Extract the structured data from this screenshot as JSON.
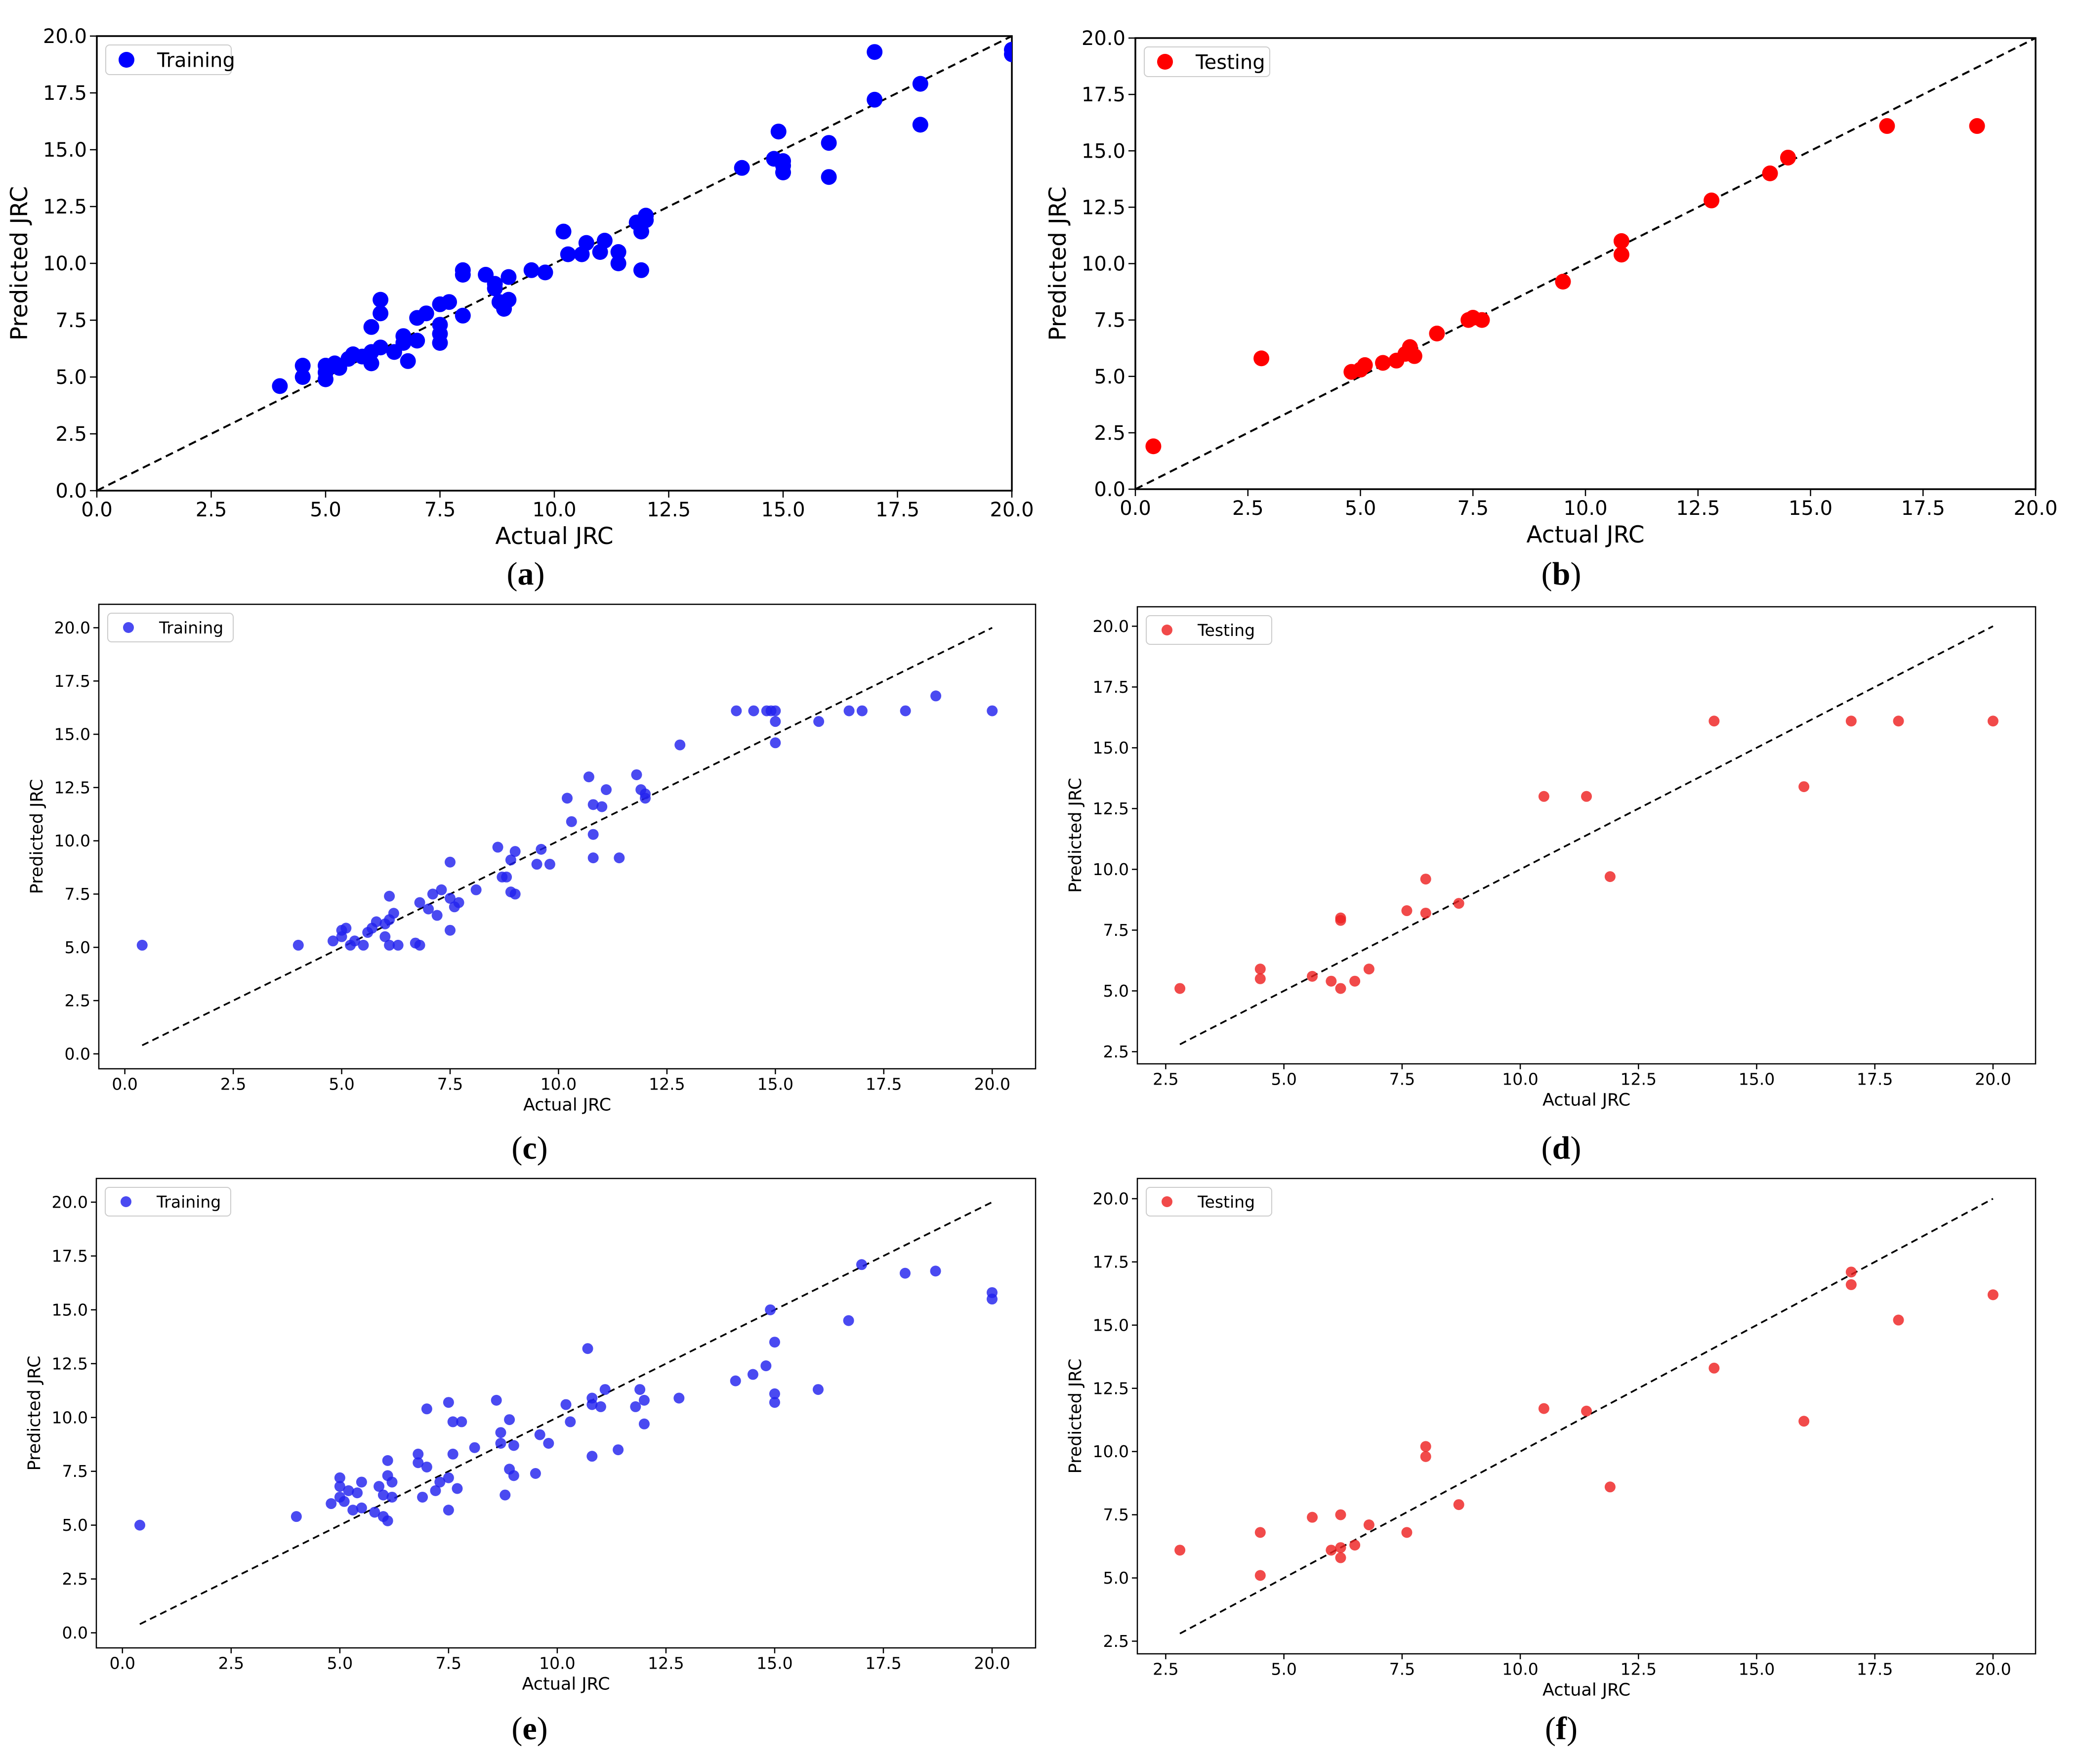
{
  "chart_data": [
    {
      "panel": "a",
      "caption_letter": "a",
      "type": "scatter",
      "xlabel": "Actual JRC",
      "ylabel": "Predicted JRC",
      "xlim": [
        0,
        20
      ],
      "ylim": [
        0,
        20
      ],
      "xticks": [
        "0.0",
        "2.5",
        "5.0",
        "7.5",
        "10.0",
        "12.5",
        "15.0",
        "17.5",
        "20.0"
      ],
      "yticks": [
        "0.0",
        "2.5",
        "5.0",
        "7.5",
        "10.0",
        "12.5",
        "15.0",
        "17.5",
        "20.0"
      ],
      "identity_line": [
        [
          0,
          0
        ],
        [
          20,
          20
        ]
      ],
      "legend": "Training",
      "color": "#0000ff",
      "points": [
        [
          4.0,
          4.6
        ],
        [
          4.5,
          5.5
        ],
        [
          4.5,
          5.0
        ],
        [
          5.0,
          5.5
        ],
        [
          5.0,
          5.2
        ],
        [
          5.0,
          4.9
        ],
        [
          5.2,
          5.6
        ],
        [
          5.3,
          5.4
        ],
        [
          5.5,
          5.8
        ],
        [
          5.6,
          6.0
        ],
        [
          5.8,
          5.9
        ],
        [
          6.0,
          6.1
        ],
        [
          6.0,
          5.6
        ],
        [
          6.0,
          7.2
        ],
        [
          6.2,
          8.4
        ],
        [
          6.2,
          7.8
        ],
        [
          6.2,
          6.3
        ],
        [
          6.5,
          6.1
        ],
        [
          6.7,
          6.5
        ],
        [
          6.7,
          6.8
        ],
        [
          6.8,
          5.7
        ],
        [
          7.0,
          6.6
        ],
        [
          7.0,
          7.6
        ],
        [
          7.2,
          7.8
        ],
        [
          7.5,
          7.3
        ],
        [
          7.5,
          6.9
        ],
        [
          7.5,
          6.5
        ],
        [
          7.5,
          8.2
        ],
        [
          7.7,
          8.3
        ],
        [
          8.0,
          7.7
        ],
        [
          8.0,
          9.5
        ],
        [
          8.0,
          9.7
        ],
        [
          8.5,
          9.5
        ],
        [
          8.7,
          9.1
        ],
        [
          8.7,
          8.9
        ],
        [
          8.8,
          8.3
        ],
        [
          8.9,
          8.0
        ],
        [
          9.0,
          9.4
        ],
        [
          9.0,
          8.4
        ],
        [
          9.5,
          9.7
        ],
        [
          9.8,
          9.6
        ],
        [
          10.2,
          11.4
        ],
        [
          10.3,
          10.4
        ],
        [
          10.6,
          10.4
        ],
        [
          10.7,
          10.9
        ],
        [
          11.0,
          10.5
        ],
        [
          11.1,
          11.0
        ],
        [
          11.4,
          10.5
        ],
        [
          11.4,
          10.0
        ],
        [
          11.8,
          11.8
        ],
        [
          11.9,
          11.4
        ],
        [
          12.0,
          12.1
        ],
        [
          12.0,
          11.9
        ],
        [
          11.9,
          9.7
        ],
        [
          14.1,
          14.2
        ],
        [
          14.8,
          14.6
        ],
        [
          14.9,
          15.8
        ],
        [
          15.0,
          14.5
        ],
        [
          15.0,
          14.0
        ],
        [
          15.0,
          14.3
        ],
        [
          16.0,
          15.3
        ],
        [
          16.0,
          13.8
        ],
        [
          17.0,
          19.3
        ],
        [
          17.0,
          17.2
        ],
        [
          18.0,
          17.9
        ],
        [
          18.0,
          16.1
        ],
        [
          20.0,
          19.4
        ],
        [
          20.0,
          19.2
        ]
      ]
    },
    {
      "panel": "b",
      "caption_letter": "b",
      "type": "scatter",
      "xlabel": "Actual JRC",
      "ylabel": "Predicted JRC",
      "xlim": [
        0,
        20
      ],
      "ylim": [
        0,
        20
      ],
      "xticks": [
        "0.0",
        "2.5",
        "5.0",
        "7.5",
        "10.0",
        "12.5",
        "15.0",
        "17.5",
        "20.0"
      ],
      "yticks": [
        "0.0",
        "2.5",
        "5.0",
        "7.5",
        "10.0",
        "12.5",
        "15.0",
        "17.5",
        "20.0"
      ],
      "identity_line": [
        [
          0,
          0
        ],
        [
          20,
          20
        ]
      ],
      "legend": "Testing",
      "color": "#ff0000",
      "points": [
        [
          0.4,
          1.9
        ],
        [
          2.8,
          5.8
        ],
        [
          4.8,
          5.2
        ],
        [
          5.0,
          5.3
        ],
        [
          5.1,
          5.5
        ],
        [
          5.5,
          5.6
        ],
        [
          5.8,
          5.7
        ],
        [
          6.0,
          6.0
        ],
        [
          6.1,
          6.3
        ],
        [
          6.2,
          5.9
        ],
        [
          6.7,
          6.9
        ],
        [
          7.4,
          7.5
        ],
        [
          7.5,
          7.6
        ],
        [
          7.7,
          7.5
        ],
        [
          9.5,
          9.2
        ],
        [
          10.8,
          11.0
        ],
        [
          10.8,
          10.4
        ],
        [
          12.8,
          12.8
        ],
        [
          14.1,
          14.0
        ],
        [
          14.5,
          14.7
        ],
        [
          16.7,
          16.1
        ],
        [
          18.7,
          16.1
        ]
      ]
    },
    {
      "panel": "c",
      "caption_letter": "c",
      "type": "scatter",
      "xlabel": "Actual JRC",
      "ylabel": "Predicted JRC",
      "xlim": [
        -0.6,
        21.0
      ],
      "ylim": [
        -0.7,
        21.1
      ],
      "xticks": [
        "0.0",
        "2.5",
        "5.0",
        "7.5",
        "10.0",
        "12.5",
        "15.0",
        "17.5",
        "20.0"
      ],
      "yticks": [
        "0.0",
        "2.5",
        "5.0",
        "7.5",
        "10.0",
        "12.5",
        "15.0",
        "17.5",
        "20.0"
      ],
      "identity_line": [
        [
          0.4,
          0.4
        ],
        [
          20,
          20
        ]
      ],
      "legend": "Training",
      "color": "#2222ee",
      "points": [
        [
          0.4,
          5.1
        ],
        [
          4.0,
          5.1
        ],
        [
          4.8,
          5.3
        ],
        [
          5.0,
          5.8
        ],
        [
          5.0,
          5.5
        ],
        [
          5.1,
          5.9
        ],
        [
          5.2,
          5.1
        ],
        [
          5.3,
          5.3
        ],
        [
          5.5,
          5.1
        ],
        [
          5.6,
          5.7
        ],
        [
          5.7,
          5.9
        ],
        [
          5.8,
          6.2
        ],
        [
          6.0,
          5.5
        ],
        [
          6.0,
          6.1
        ],
        [
          6.1,
          5.1
        ],
        [
          6.1,
          6.3
        ],
        [
          6.1,
          7.4
        ],
        [
          6.2,
          6.6
        ],
        [
          6.3,
          5.1
        ],
        [
          6.7,
          5.2
        ],
        [
          6.8,
          7.1
        ],
        [
          6.8,
          5.1
        ],
        [
          7.0,
          6.8
        ],
        [
          7.1,
          7.5
        ],
        [
          7.2,
          6.5
        ],
        [
          7.3,
          7.7
        ],
        [
          7.5,
          7.3
        ],
        [
          7.5,
          5.8
        ],
        [
          7.5,
          9.0
        ],
        [
          7.6,
          6.9
        ],
        [
          7.7,
          7.1
        ],
        [
          8.1,
          7.7
        ],
        [
          8.6,
          9.7
        ],
        [
          8.7,
          8.3
        ],
        [
          8.8,
          8.3
        ],
        [
          8.9,
          9.1
        ],
        [
          8.9,
          7.6
        ],
        [
          9.0,
          7.5
        ],
        [
          9.0,
          9.5
        ],
        [
          9.5,
          8.9
        ],
        [
          9.6,
          9.6
        ],
        [
          9.8,
          8.9
        ],
        [
          10.2,
          12.0
        ],
        [
          10.3,
          10.9
        ],
        [
          10.7,
          13.0
        ],
        [
          10.8,
          11.7
        ],
        [
          10.8,
          10.3
        ],
        [
          10.8,
          9.2
        ],
        [
          11.1,
          12.4
        ],
        [
          11.0,
          11.6
        ],
        [
          11.4,
          9.2
        ],
        [
          11.8,
          13.1
        ],
        [
          11.9,
          12.4
        ],
        [
          12.0,
          12.0
        ],
        [
          12.0,
          12.2
        ],
        [
          12.8,
          14.5
        ],
        [
          14.1,
          16.1
        ],
        [
          14.5,
          16.1
        ],
        [
          14.8,
          16.1
        ],
        [
          14.9,
          16.1
        ],
        [
          15.0,
          16.1
        ],
        [
          15.0,
          15.6
        ],
        [
          15.0,
          14.6
        ],
        [
          16.0,
          15.6
        ],
        [
          16.7,
          16.1
        ],
        [
          17.0,
          16.1
        ],
        [
          18.0,
          16.1
        ],
        [
          18.7,
          16.8
        ],
        [
          20.0,
          16.1
        ]
      ]
    },
    {
      "panel": "d",
      "caption_letter": "d",
      "type": "scatter",
      "xlabel": "Actual JRC",
      "ylabel": "Predicted JRC",
      "xlim": [
        1.9,
        20.9
      ],
      "ylim": [
        2.0,
        20.8
      ],
      "xticks": [
        "2.5",
        "5.0",
        "7.5",
        "10.0",
        "12.5",
        "15.0",
        "17.5",
        "20.0"
      ],
      "yticks": [
        "2.5",
        "5.0",
        "7.5",
        "10.0",
        "12.5",
        "15.0",
        "17.5",
        "20.0"
      ],
      "identity_line": [
        [
          2.8,
          2.8
        ],
        [
          20,
          20
        ]
      ],
      "legend": "Testing",
      "color": "#ee2222",
      "points": [
        [
          2.8,
          5.1
        ],
        [
          4.5,
          5.9
        ],
        [
          4.5,
          5.5
        ],
        [
          5.6,
          5.6
        ],
        [
          6.0,
          5.4
        ],
        [
          6.2,
          8.0
        ],
        [
          6.2,
          7.9
        ],
        [
          6.2,
          5.1
        ],
        [
          6.5,
          5.4
        ],
        [
          6.8,
          5.9
        ],
        [
          7.6,
          8.3
        ],
        [
          8.0,
          9.6
        ],
        [
          8.0,
          8.2
        ],
        [
          8.7,
          8.6
        ],
        [
          10.5,
          13.0
        ],
        [
          11.4,
          13.0
        ],
        [
          11.9,
          9.7
        ],
        [
          14.1,
          16.1
        ],
        [
          16.0,
          13.4
        ],
        [
          17.0,
          16.1
        ],
        [
          18.0,
          16.1
        ],
        [
          20.0,
          16.1
        ]
      ]
    },
    {
      "panel": "e",
      "caption_letter": "e",
      "type": "scatter",
      "xlabel": "Actual JRC",
      "ylabel": "Predicted JRC",
      "xlim": [
        -0.6,
        21.0
      ],
      "ylim": [
        -0.7,
        21.1
      ],
      "xticks": [
        "0.0",
        "2.5",
        "5.0",
        "7.5",
        "10.0",
        "12.5",
        "15.0",
        "17.5",
        "20.0"
      ],
      "yticks": [
        "0.0",
        "2.5",
        "5.0",
        "7.5",
        "10.0",
        "12.5",
        "15.0",
        "17.5",
        "20.0"
      ],
      "identity_line": [
        [
          0.4,
          0.4
        ],
        [
          20,
          20
        ]
      ],
      "legend": "Training",
      "color": "#2222ee",
      "points": [
        [
          0.4,
          5.0
        ],
        [
          4.0,
          5.4
        ],
        [
          4.8,
          6.0
        ],
        [
          5.0,
          7.2
        ],
        [
          5.0,
          6.8
        ],
        [
          5.0,
          6.3
        ],
        [
          5.1,
          6.1
        ],
        [
          5.2,
          6.6
        ],
        [
          5.3,
          5.7
        ],
        [
          5.4,
          6.5
        ],
        [
          5.5,
          5.8
        ],
        [
          5.5,
          7.0
        ],
        [
          5.8,
          5.6
        ],
        [
          5.9,
          6.8
        ],
        [
          6.0,
          5.4
        ],
        [
          6.0,
          6.4
        ],
        [
          6.1,
          7.3
        ],
        [
          6.1,
          5.2
        ],
        [
          6.2,
          6.3
        ],
        [
          6.1,
          8.0
        ],
        [
          6.2,
          7.0
        ],
        [
          6.8,
          8.3
        ],
        [
          6.8,
          7.9
        ],
        [
          6.9,
          6.3
        ],
        [
          7.0,
          7.7
        ],
        [
          7.0,
          10.4
        ],
        [
          7.2,
          6.6
        ],
        [
          7.3,
          7.0
        ],
        [
          7.5,
          10.7
        ],
        [
          7.5,
          7.2
        ],
        [
          7.5,
          5.7
        ],
        [
          7.6,
          9.8
        ],
        [
          7.6,
          8.3
        ],
        [
          7.7,
          6.7
        ],
        [
          7.8,
          9.8
        ],
        [
          8.1,
          8.6
        ],
        [
          8.6,
          10.8
        ],
        [
          8.7,
          8.8
        ],
        [
          8.7,
          9.3
        ],
        [
          8.8,
          6.4
        ],
        [
          8.9,
          9.9
        ],
        [
          8.9,
          7.6
        ],
        [
          9.0,
          7.3
        ],
        [
          9.0,
          8.7
        ],
        [
          9.5,
          7.4
        ],
        [
          9.6,
          9.2
        ],
        [
          9.8,
          8.8
        ],
        [
          10.2,
          10.6
        ],
        [
          10.3,
          9.8
        ],
        [
          10.7,
          13.2
        ],
        [
          10.8,
          10.9
        ],
        [
          10.8,
          8.2
        ],
        [
          10.8,
          10.6
        ],
        [
          11.0,
          10.5
        ],
        [
          11.1,
          11.3
        ],
        [
          11.4,
          8.5
        ],
        [
          11.8,
          10.5
        ],
        [
          11.9,
          11.3
        ],
        [
          12.0,
          10.8
        ],
        [
          12.0,
          9.7
        ],
        [
          12.8,
          10.9
        ],
        [
          14.1,
          11.7
        ],
        [
          14.5,
          12.0
        ],
        [
          14.8,
          12.4
        ],
        [
          14.9,
          15.0
        ],
        [
          15.0,
          13.5
        ],
        [
          15.0,
          11.1
        ],
        [
          15.0,
          10.7
        ],
        [
          16.0,
          11.3
        ],
        [
          16.7,
          14.5
        ],
        [
          17.0,
          17.1
        ],
        [
          18.0,
          16.7
        ],
        [
          18.7,
          16.8
        ],
        [
          20.0,
          15.8
        ],
        [
          20.0,
          15.5
        ]
      ]
    },
    {
      "panel": "f",
      "caption_letter": "f",
      "type": "scatter",
      "xlabel": "Actual JRC",
      "ylabel": "Predicted JRC",
      "xlim": [
        1.9,
        20.9
      ],
      "ylim": [
        2.0,
        20.8
      ],
      "xticks": [
        "2.5",
        "5.0",
        "7.5",
        "10.0",
        "12.5",
        "15.0",
        "17.5",
        "20.0"
      ],
      "yticks": [
        "2.5",
        "5.0",
        "7.5",
        "10.0",
        "12.5",
        "15.0",
        "17.5",
        "20.0"
      ],
      "identity_line": [
        [
          2.8,
          2.8
        ],
        [
          20,
          20
        ]
      ],
      "legend": "Testing",
      "color": "#ee2222",
      "points": [
        [
          2.8,
          6.1
        ],
        [
          4.5,
          6.8
        ],
        [
          4.5,
          5.1
        ],
        [
          5.6,
          7.4
        ],
        [
          6.0,
          6.1
        ],
        [
          6.2,
          7.5
        ],
        [
          6.2,
          6.2
        ],
        [
          6.2,
          5.8
        ],
        [
          6.5,
          6.3
        ],
        [
          6.8,
          7.1
        ],
        [
          7.6,
          6.8
        ],
        [
          8.0,
          10.2
        ],
        [
          8.0,
          9.8
        ],
        [
          8.7,
          7.9
        ],
        [
          10.5,
          11.7
        ],
        [
          11.4,
          11.6
        ],
        [
          11.9,
          8.6
        ],
        [
          14.1,
          13.3
        ],
        [
          16.0,
          11.2
        ],
        [
          17.0,
          17.1
        ],
        [
          17.0,
          16.6
        ],
        [
          18.0,
          15.2
        ],
        [
          20.0,
          16.2
        ]
      ]
    }
  ]
}
